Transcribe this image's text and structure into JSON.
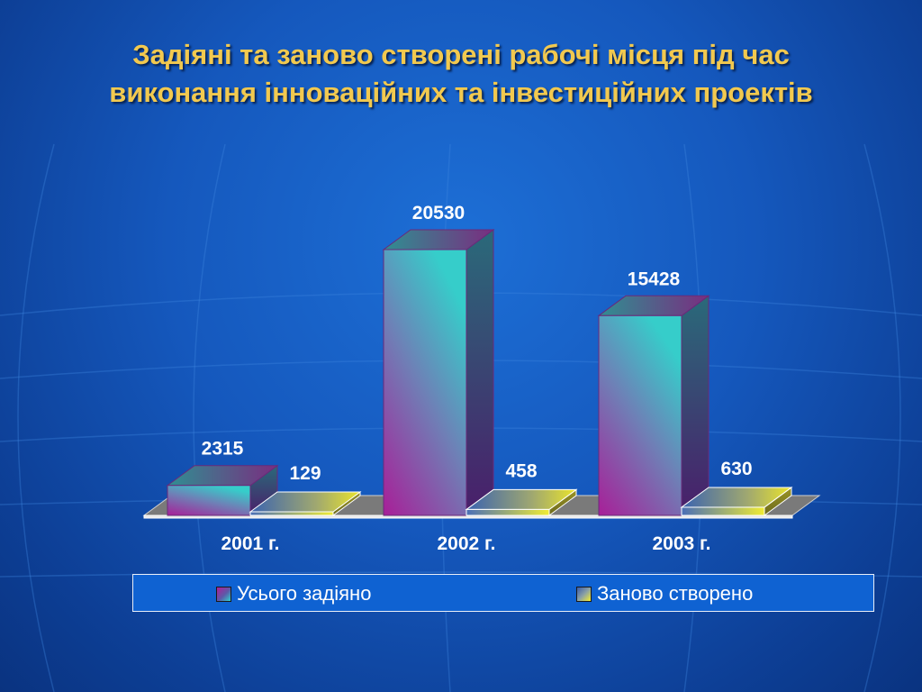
{
  "title_lines": [
    "Задіяні та заново створені рабочі місця під час",
    "виконання інноваційних та інвестиційних проектів"
  ],
  "chart_data": {
    "type": "bar",
    "style": "3d-clustered",
    "categories": [
      "2001 г.",
      "2002 г.",
      "2003 г."
    ],
    "series": [
      {
        "name": "Усього задіяно",
        "values": [
          2315,
          20530,
          15428
        ],
        "data_labels": [
          "2315",
          "20530",
          "15428"
        ]
      },
      {
        "name": "Заново створено",
        "values": [
          129,
          458,
          630
        ],
        "data_labels": [
          "129",
          "458",
          "630"
        ]
      }
    ],
    "ylim": [
      0,
      20530
    ],
    "grid": false,
    "legend_position": "bottom",
    "colors": {
      "total_front_top": "#36cdca",
      "total_front_bottom": "#a81f98",
      "new_front": "#f0ec33",
      "floor": "#7a7a7a"
    }
  },
  "legend": {
    "items": [
      {
        "label": "Усього задіяно"
      },
      {
        "label": "Заново створено"
      }
    ]
  }
}
